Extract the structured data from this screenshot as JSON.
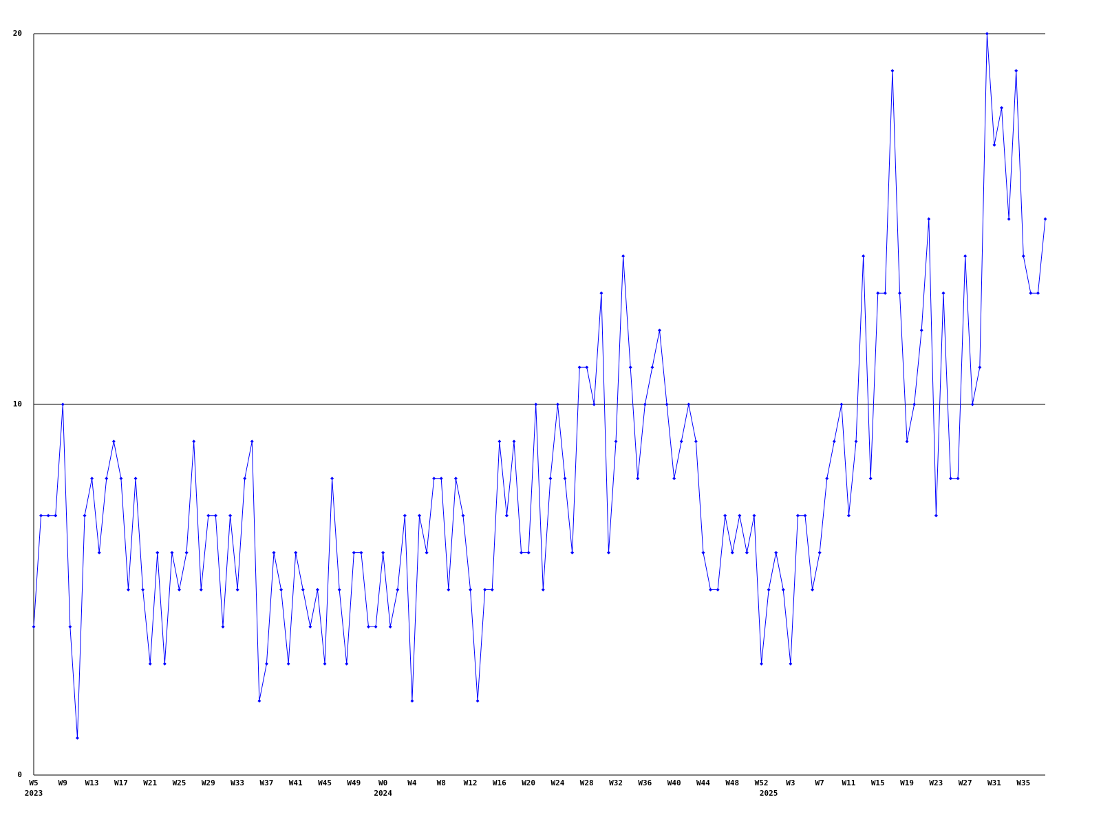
{
  "chart_data": {
    "type": "line",
    "categories": [
      "W5",
      null,
      null,
      null,
      "W9",
      null,
      null,
      null,
      "W13",
      null,
      null,
      null,
      "W17",
      null,
      null,
      null,
      "W21",
      null,
      null,
      null,
      "W25",
      null,
      null,
      null,
      "W29",
      null,
      null,
      null,
      "W33",
      null,
      null,
      null,
      "W37",
      null,
      null,
      null,
      "W41",
      null,
      null,
      null,
      "W45",
      null,
      null,
      null,
      "W49",
      null,
      null,
      null,
      "W0",
      null,
      null,
      null,
      "W4",
      null,
      null,
      null,
      "W8",
      null,
      null,
      null,
      "W12",
      null,
      null,
      null,
      "W16",
      null,
      null,
      null,
      "W20",
      null,
      null,
      null,
      "W24",
      null,
      null,
      null,
      "W28",
      null,
      null,
      null,
      "W32",
      null,
      null,
      null,
      "W36",
      null,
      null,
      null,
      "W40",
      null,
      null,
      null,
      "W44",
      null,
      null,
      null,
      "W48",
      null,
      null,
      null,
      "W52",
      null,
      null,
      null,
      "W3",
      null,
      null,
      null,
      "W7",
      null,
      null,
      null,
      "W11",
      null,
      null,
      null,
      "W15",
      null,
      null,
      null,
      "W19",
      null,
      null,
      null,
      "W23",
      null,
      null,
      null,
      "W27",
      null,
      null,
      null,
      "W31",
      null,
      null,
      null,
      "W35",
      null,
      null,
      null
    ],
    "year_categories": [
      "2023",
      null,
      null,
      null,
      null,
      null,
      null,
      null,
      null,
      null,
      null,
      null,
      null,
      null,
      null,
      null,
      null,
      null,
      null,
      null,
      null,
      null,
      null,
      null,
      null,
      null,
      null,
      null,
      null,
      null,
      null,
      null,
      null,
      null,
      null,
      null,
      null,
      null,
      null,
      null,
      null,
      null,
      null,
      null,
      null,
      null,
      null,
      null,
      "2024",
      null,
      null,
      null,
      null,
      null,
      null,
      null,
      null,
      null,
      null,
      null,
      null,
      null,
      null,
      null,
      null,
      null,
      null,
      null,
      null,
      null,
      null,
      null,
      null,
      null,
      null,
      null,
      null,
      null,
      null,
      null,
      null,
      null,
      null,
      null,
      null,
      null,
      null,
      null,
      null,
      null,
      null,
      null,
      null,
      null,
      null,
      null,
      null,
      null,
      null,
      null,
      null,
      "2025",
      null,
      null,
      null,
      null,
      null,
      null,
      null,
      null,
      null,
      null,
      null,
      null,
      null,
      null,
      null,
      null,
      null,
      null,
      null,
      null,
      null,
      null,
      null,
      null,
      null,
      null,
      null,
      null,
      null,
      null,
      null,
      null,
      null,
      null,
      null,
      null,
      null,
      null
    ],
    "series": [
      {
        "color": "#0000ff",
        "values": [
          4,
          7,
          7,
          7,
          10,
          4,
          1,
          7,
          8,
          6,
          8,
          9,
          8,
          5,
          8,
          5,
          3,
          6,
          3,
          6,
          5,
          6,
          9,
          5,
          7,
          7,
          4,
          7,
          5,
          8,
          9,
          2,
          3,
          6,
          5,
          3,
          6,
          5,
          4,
          5,
          3,
          8,
          5,
          3,
          6,
          6,
          4,
          4,
          6,
          4,
          5,
          7,
          2,
          7,
          6,
          8,
          8,
          5,
          8,
          7,
          5,
          2,
          5,
          5,
          9,
          7,
          9,
          6,
          6,
          10,
          5,
          8,
          10,
          8,
          6,
          11,
          11,
          10,
          13,
          6,
          9,
          14,
          11,
          8,
          10,
          11,
          12,
          10,
          8,
          9,
          10,
          9,
          6,
          5,
          5,
          7,
          6,
          7,
          6,
          7,
          3,
          5,
          6,
          5,
          3,
          7,
          7,
          5,
          6,
          8,
          9,
          10,
          7,
          9,
          14,
          8,
          13,
          13,
          19,
          13,
          9,
          10,
          12,
          15,
          7,
          13,
          8,
          8,
          14,
          10,
          11,
          20,
          17,
          18,
          15,
          19,
          14,
          13,
          13,
          15
        ]
      }
    ],
    "ylim": [
      0,
      20
    ],
    "yticks": [
      0,
      10,
      20
    ],
    "grid": true
  }
}
